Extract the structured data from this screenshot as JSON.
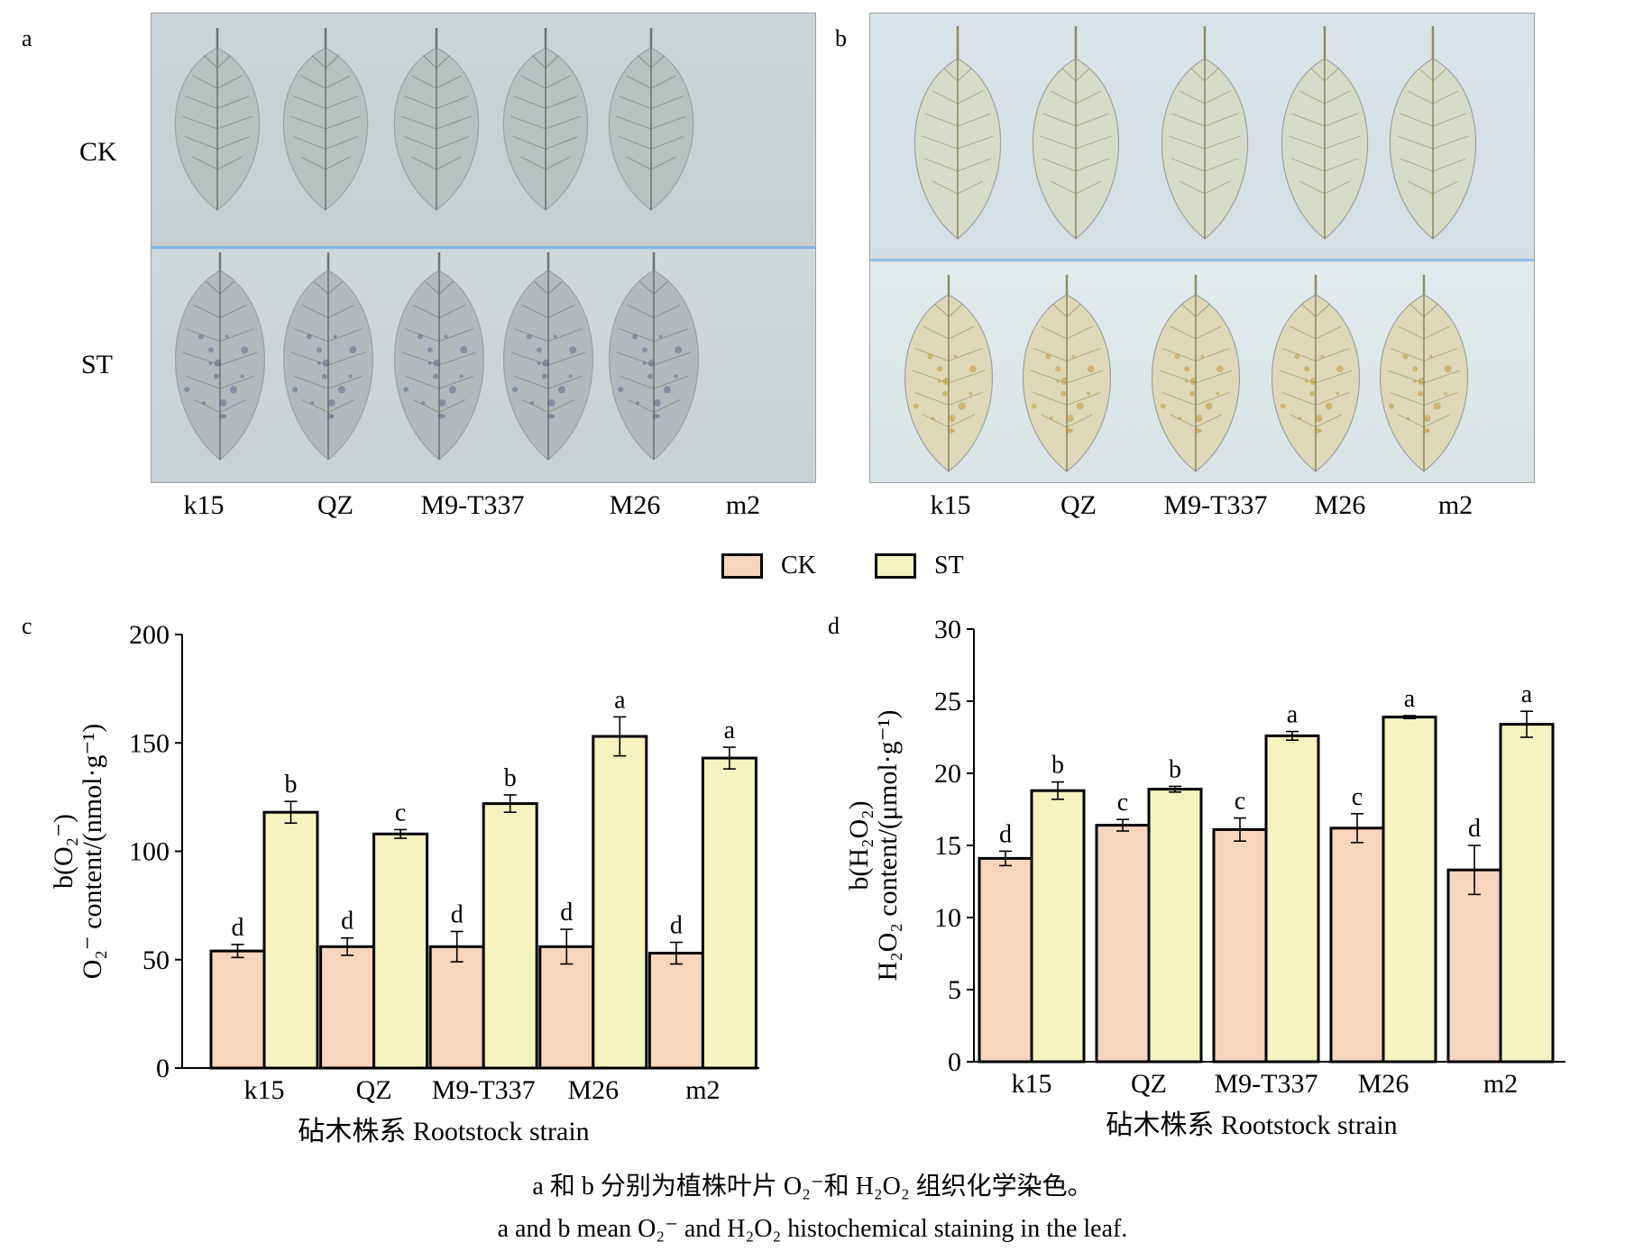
{
  "panels": {
    "a_letter": "a",
    "b_letter": "b",
    "c_letter": "c",
    "d_letter": "d",
    "row_labels": [
      "CK",
      "ST"
    ],
    "strains": [
      "k15",
      "QZ",
      "M9-T337",
      "M26",
      "m2"
    ]
  },
  "legend": [
    {
      "name": "CK",
      "color": "#f8d5bd"
    },
    {
      "name": "ST",
      "color": "#f5f3c0"
    }
  ],
  "chart_data": [
    {
      "type": "bar",
      "panel": "c",
      "categories": [
        "k15",
        "QZ",
        "M9-T337",
        "M26",
        "m2"
      ],
      "series": [
        {
          "name": "CK",
          "values": [
            54,
            56,
            56,
            56,
            53
          ],
          "errors": [
            3,
            4,
            7,
            8,
            5
          ],
          "letters": [
            "d",
            "d",
            "d",
            "d",
            "d"
          ]
        },
        {
          "name": "ST",
          "values": [
            118,
            108,
            122,
            153,
            143
          ],
          "errors": [
            5,
            2,
            4,
            9,
            5
          ],
          "letters": [
            "b",
            "c",
            "b",
            "a",
            "a"
          ]
        }
      ],
      "ylim": [
        0,
        200
      ],
      "yticks": [
        "0",
        "50",
        "100",
        "150",
        "200"
      ],
      "ylabel_line1": "b(O₂⁻)",
      "ylabel_line2": "O₂⁻ content/(nmol·g⁻¹)",
      "xlabel": "砧木株系 Rootstock strain"
    },
    {
      "type": "bar",
      "panel": "d",
      "categories": [
        "k15",
        "QZ",
        "M9-T337",
        "M26",
        "m2"
      ],
      "series": [
        {
          "name": "CK",
          "values": [
            14.1,
            16.4,
            16.1,
            16.2,
            13.3
          ],
          "errors": [
            0.5,
            0.4,
            0.8,
            1.0,
            1.7
          ],
          "letters": [
            "d",
            "c",
            "c",
            "c",
            "d"
          ]
        },
        {
          "name": "ST",
          "values": [
            18.8,
            18.9,
            22.6,
            23.9,
            23.4
          ],
          "errors": [
            0.6,
            0.2,
            0.3,
            0.1,
            0.9
          ],
          "letters": [
            "b",
            "b",
            "a",
            "a",
            "a"
          ]
        }
      ],
      "ylim": [
        0,
        30
      ],
      "yticks": [
        "0",
        "5",
        "10",
        "15",
        "20",
        "25",
        "30"
      ],
      "ylabel_line1": "b(H₂O₂)",
      "ylabel_line2": "H₂O₂ content/(μmol·g⁻¹)",
      "xlabel": "砧木株系 Rootstock strain"
    }
  ],
  "caption": {
    "zh": "a 和 b 分别为植株叶片 O₂⁻和 H₂O₂ 组织化学染色。",
    "en": "a and b mean O₂⁻ and H₂O₂ histochemical staining in the leaf."
  }
}
